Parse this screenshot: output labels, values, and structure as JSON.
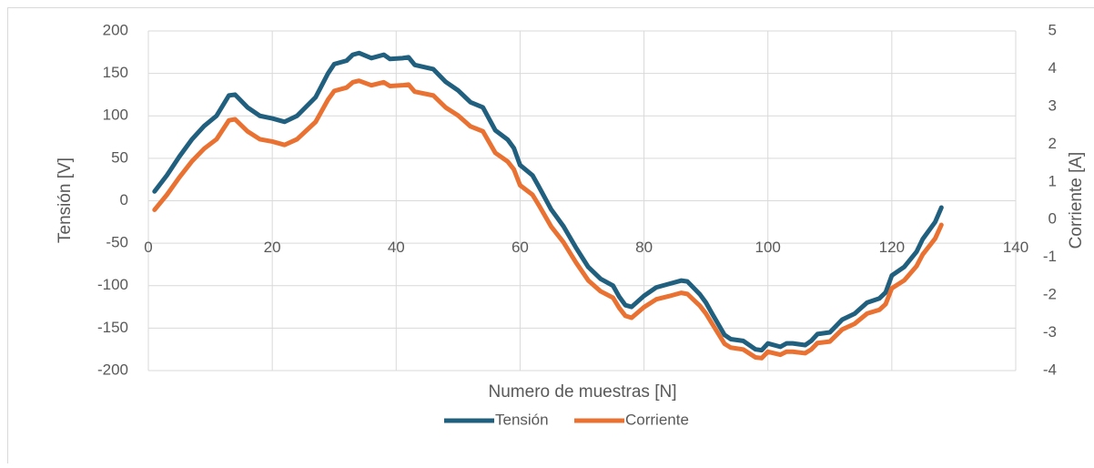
{
  "chart_data": {
    "type": "line",
    "x_label": "Numero de muestras [N]",
    "y_label": "Tensión [V]",
    "y2_label": "Corriente [A]",
    "x": [
      1,
      3,
      5,
      7,
      9,
      11,
      13,
      14,
      16,
      18,
      20,
      22,
      24,
      27,
      29,
      30,
      32,
      33,
      34,
      36,
      38,
      39,
      41,
      42,
      43,
      46,
      48,
      50,
      52,
      54,
      56,
      58,
      59,
      60,
      62,
      63,
      65,
      67,
      69,
      71,
      73,
      75,
      76,
      77,
      78,
      80,
      82,
      84,
      86,
      87,
      89,
      90,
      91,
      93,
      94,
      96,
      98,
      99,
      100,
      102,
      103,
      104,
      106,
      107,
      108,
      110,
      112,
      114,
      116,
      118,
      119,
      120,
      122,
      124,
      125,
      127,
      128
    ],
    "series": [
      {
        "name": "Tensión",
        "color": "#215f7e",
        "axis": "y",
        "values": [
          11,
          30,
          52,
          72,
          88,
          100,
          124,
          125,
          110,
          100,
          97,
          93,
          100,
          122,
          150,
          161,
          165,
          172,
          174,
          168,
          172,
          167,
          168,
          169,
          160,
          155,
          140,
          130,
          116,
          110,
          83,
          72,
          62,
          42,
          30,
          17,
          -10,
          -30,
          -55,
          -78,
          -92,
          -100,
          -113,
          -123,
          -125,
          -112,
          -102,
          -98,
          -94,
          -95,
          -110,
          -120,
          -133,
          -158,
          -163,
          -165,
          -175,
          -176,
          -168,
          -172,
          -168,
          -168,
          -170,
          -165,
          -157,
          -155,
          -140,
          -133,
          -120,
          -115,
          -108,
          -88,
          -78,
          -60,
          -45,
          -25,
          -8
        ]
      },
      {
        "name": "Corriente",
        "color": "#e97132",
        "axis": "y2",
        "values": [
          0.26,
          0.66,
          1.12,
          1.54,
          1.88,
          2.13,
          2.63,
          2.66,
          2.34,
          2.13,
          2.07,
          1.98,
          2.13,
          2.59,
          3.18,
          3.41,
          3.5,
          3.64,
          3.68,
          3.56,
          3.64,
          3.54,
          3.56,
          3.58,
          3.39,
          3.29,
          2.97,
          2.76,
          2.47,
          2.34,
          1.77,
          1.54,
          1.33,
          0.91,
          0.66,
          0.39,
          -0.18,
          -0.6,
          -1.13,
          -1.61,
          -1.9,
          -2.07,
          -2.34,
          -2.55,
          -2.6,
          -2.32,
          -2.11,
          -2.03,
          -1.94,
          -1.97,
          -2.28,
          -2.49,
          -2.76,
          -3.29,
          -3.39,
          -3.44,
          -3.65,
          -3.67,
          -3.5,
          -3.58,
          -3.5,
          -3.5,
          -3.54,
          -3.44,
          -3.27,
          -3.23,
          -2.91,
          -2.76,
          -2.49,
          -2.39,
          -2.24,
          -1.82,
          -1.61,
          -1.23,
          -0.92,
          -0.5,
          -0.14
        ]
      }
    ],
    "xlim": [
      0,
      140
    ],
    "xticks": [
      0,
      20,
      40,
      60,
      80,
      100,
      120,
      140
    ],
    "ylim": [
      -200,
      200
    ],
    "yticks": [
      -200,
      -150,
      -100,
      -50,
      0,
      50,
      100,
      150,
      200
    ],
    "y2lim": [
      -4,
      5
    ],
    "y2ticks": [
      -4,
      -3,
      -2,
      -1,
      0,
      1,
      2,
      3,
      4,
      5
    ],
    "grid": true,
    "legend": "bottom"
  }
}
